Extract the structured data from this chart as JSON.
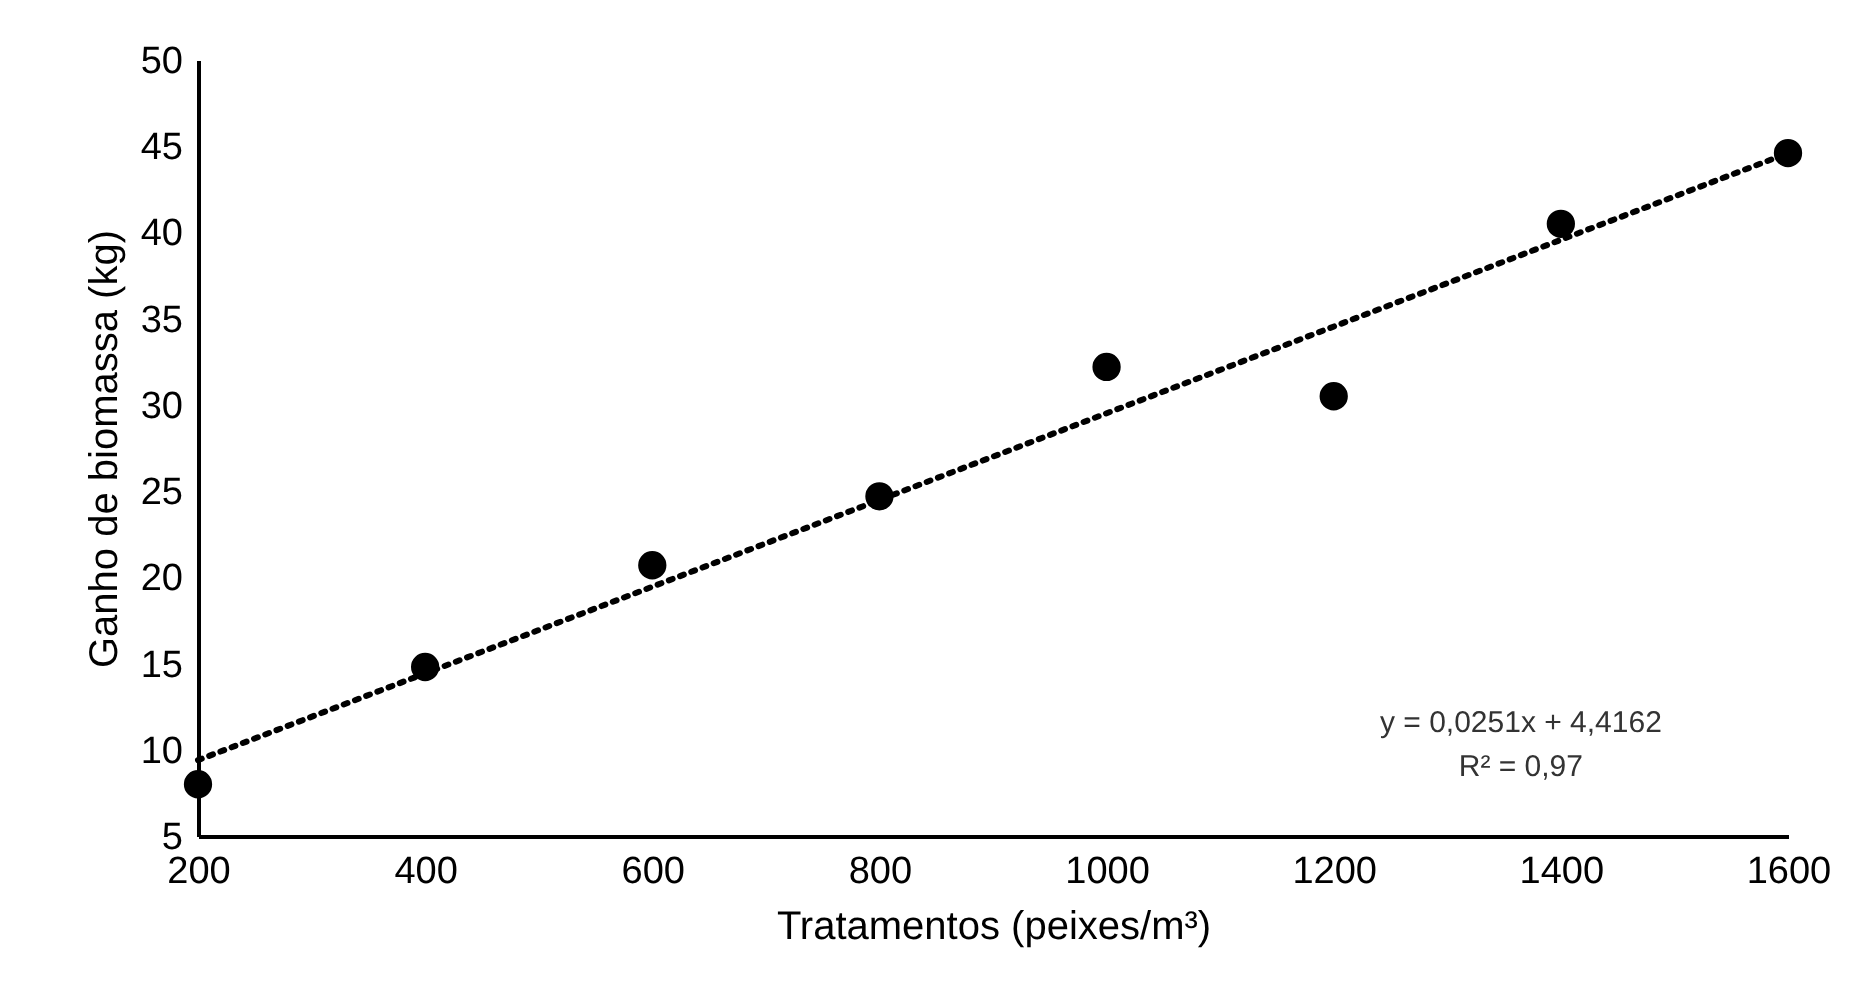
{
  "chart_data": {
    "type": "scatter",
    "xlabel": "Tratamentos (peixes/m³)",
    "ylabel": "Ganho de biomassa (kg)",
    "xlim": [
      200,
      1600
    ],
    "xticks": [
      200,
      400,
      600,
      800,
      1000,
      1200,
      1400,
      1600
    ],
    "ylim": [
      5,
      50
    ],
    "yticks": [
      5,
      10,
      15,
      20,
      25,
      30,
      35,
      40,
      45,
      50
    ],
    "grid": false,
    "annotations": [
      "y = 0,0251x + 4,4162",
      "R² = 0,97"
    ],
    "series": [
      {
        "type": "scatter",
        "color": "#000000",
        "marker": "circle",
        "x": [
          200,
          400,
          600,
          800,
          1000,
          1200,
          1400,
          1600
        ],
        "values": [
          8.0,
          14.8,
          20.7,
          24.7,
          32.2,
          30.5,
          40.5,
          44.6
        ]
      },
      {
        "type": "line",
        "color": "#000000",
        "marker": "none",
        "line_style": "dotted",
        "x": [
          200,
          1600
        ],
        "values": [
          9.4,
          44.6
        ]
      }
    ]
  }
}
